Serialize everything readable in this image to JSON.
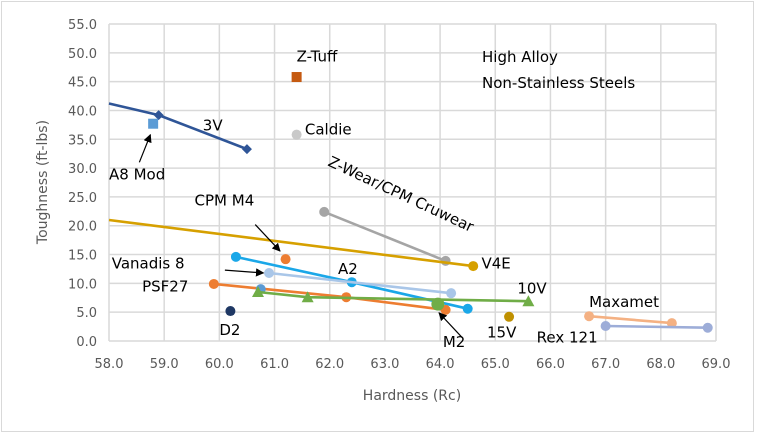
{
  "chart_data": {
    "type": "scatter",
    "title": "",
    "annotation": [
      "High Alloy",
      "Non-Stainless Steels"
    ],
    "xlabel": "Hardness (Rc)",
    "ylabel": "Toughness (ft-lbs)",
    "xlim": [
      58.0,
      69.0
    ],
    "ylim": [
      0.0,
      55.0
    ],
    "xticks": [
      "58.0",
      "59.0",
      "60.0",
      "61.0",
      "62.0",
      "63.0",
      "64.0",
      "65.0",
      "66.0",
      "67.0",
      "68.0",
      "69.0"
    ],
    "yticks": [
      "0.0",
      "5.0",
      "10.0",
      "15.0",
      "20.0",
      "25.0",
      "30.0",
      "35.0",
      "40.0",
      "45.0",
      "50.0",
      "55.0"
    ],
    "grid": true,
    "series": [
      {
        "name": "3V",
        "color": "#2f5597",
        "marker": "diamond",
        "line_start": [
          58.0,
          41.2
        ],
        "points": [
          [
            58.9,
            39.2
          ],
          [
            60.5,
            33.3
          ]
        ]
      },
      {
        "name": "A8 Mod",
        "color": "#5b9bd5",
        "marker": "square",
        "points": [
          [
            58.8,
            37.7
          ]
        ]
      },
      {
        "name": "Z-Tuff",
        "color": "#c55a11",
        "marker": "square",
        "points": [
          [
            61.4,
            45.8
          ]
        ]
      },
      {
        "name": "Caldie",
        "color": "#c9c9c9",
        "marker": "circle",
        "points": [
          [
            61.4,
            35.8
          ]
        ]
      },
      {
        "name": "Z-Wear/CPM Cruwear",
        "color": "#a5a5a5",
        "marker": "circle",
        "points": [
          [
            61.9,
            22.4
          ],
          [
            64.1,
            13.9
          ]
        ]
      },
      {
        "name": "V4E",
        "color": "#d6a000",
        "marker": "circle",
        "line_start": [
          58.0,
          21.0
        ],
        "points": [
          [
            64.6,
            13.0
          ]
        ]
      },
      {
        "name": "CPM M4",
        "color": "#ed7d31",
        "marker": "circle",
        "points": [
          [
            61.2,
            14.2
          ]
        ]
      },
      {
        "name": "A2",
        "color": "#1aa7e8",
        "marker": "circle",
        "points": [
          [
            60.3,
            14.6
          ],
          [
            62.4,
            10.2
          ],
          [
            64.5,
            5.6
          ]
        ]
      },
      {
        "name": "Vanadis 8",
        "color": "#a9c6e8",
        "marker": "circle",
        "points": [
          [
            60.9,
            11.8
          ],
          [
            64.2,
            8.3
          ]
        ]
      },
      {
        "name": "PSF27",
        "color": "#ed7d31",
        "marker": "circle",
        "points": [
          [
            59.9,
            9.9
          ],
          [
            62.3,
            7.6
          ],
          [
            64.1,
            5.4
          ]
        ]
      },
      {
        "name": "",
        "color": "#5b9bd5",
        "marker": "circle",
        "points": [
          [
            60.75,
            9.0
          ]
        ]
      },
      {
        "name": "10V",
        "color": "#70ad47",
        "marker": "triangle",
        "points": [
          [
            60.7,
            8.5
          ],
          [
            61.6,
            7.6
          ],
          [
            65.6,
            6.9
          ]
        ]
      },
      {
        "name": "M2",
        "color": "#70ad47",
        "marker": "circle-large",
        "points": [
          [
            63.96,
            6.4
          ]
        ]
      },
      {
        "name": "D2",
        "color": "#1f3864",
        "marker": "circle",
        "points": [
          [
            60.2,
            5.2
          ]
        ]
      },
      {
        "name": "15V",
        "color": "#bf9000",
        "marker": "circle",
        "points": [
          [
            65.25,
            4.2
          ]
        ]
      },
      {
        "name": "Maxamet",
        "color": "#f4b183",
        "marker": "circle",
        "points": [
          [
            66.7,
            4.3
          ],
          [
            68.2,
            3.1
          ]
        ]
      },
      {
        "name": "Rex 121",
        "color": "#9dadd8",
        "marker": "circle",
        "points": [
          [
            67.0,
            2.6
          ],
          [
            68.85,
            2.3
          ]
        ]
      }
    ],
    "labels": [
      {
        "text": "Z-Tuff",
        "at": [
          61.4,
          48.5
        ]
      },
      {
        "text": "Caldie",
        "at": [
          61.55,
          35.8
        ]
      },
      {
        "text": "3V",
        "at": [
          59.7,
          36.5
        ]
      },
      {
        "text": "A8 Mod",
        "at": [
          58.0,
          28.0
        ]
      },
      {
        "text": "CPM M4",
        "at": [
          59.55,
          23.5
        ]
      },
      {
        "text": "Vanadis 8",
        "at": [
          58.05,
          12.6
        ]
      },
      {
        "text": "PSF27",
        "at": [
          58.6,
          8.6
        ]
      },
      {
        "text": "D2",
        "at": [
          60.0,
          1.0
        ]
      },
      {
        "text": "A2",
        "at": [
          62.15,
          11.6
        ]
      },
      {
        "text": "V4E",
        "at": [
          64.75,
          12.6
        ]
      },
      {
        "text": "10V",
        "at": [
          65.4,
          8.2
        ]
      },
      {
        "text": "M2",
        "at": [
          64.05,
          -1.0
        ]
      },
      {
        "text": "15V",
        "at": [
          64.85,
          0.6
        ]
      },
      {
        "text": "Rex 121",
        "at": [
          65.75,
          -0.3
        ]
      },
      {
        "text": "Maxamet",
        "at": [
          66.7,
          5.9
        ]
      },
      {
        "text": "Z-Wear/CPM Cruwear",
        "at": [
          61.95,
          30.5
        ],
        "rotate": 25
      }
    ],
    "arrows": [
      {
        "label": "A8 Mod",
        "from": [
          58.55,
          31.0
        ],
        "to": [
          58.75,
          35.8
        ]
      },
      {
        "label": "CPM M4",
        "from": [
          60.65,
          20.2
        ],
        "to": [
          61.1,
          15.6
        ]
      },
      {
        "label": "Vanadis 8",
        "from": [
          60.1,
          12.3
        ],
        "to": [
          60.8,
          11.8
        ]
      },
      {
        "label": "M2",
        "from": [
          64.4,
          0.6
        ],
        "to": [
          63.98,
          4.9
        ]
      }
    ]
  }
}
